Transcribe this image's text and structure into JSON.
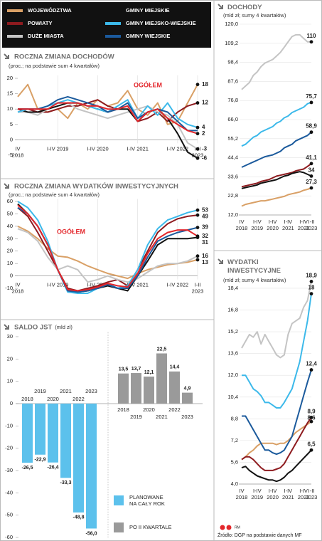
{
  "legend": {
    "items": [
      {
        "name": "WOJEWÓDZTWA",
        "color": "#d9a066"
      },
      {
        "name": "POWIATY",
        "color": "#8e1b1f"
      },
      {
        "name": "DUŻE MIASTA",
        "color": "#c4c4c4"
      },
      {
        "name": "GMINY MIEJSKIE",
        "color": "#111111"
      },
      {
        "name": "GMINY MIEJSKO-WIEJSKIE",
        "color": "#3cb9ea"
      },
      {
        "name": "GMINY WIEJSKIE",
        "color": "#1b5a9c"
      }
    ]
  },
  "footer": {
    "source": "Źródło: DGP na podstawie danych MF",
    "author": "RM"
  },
  "chart_data": [
    {
      "type": "line",
      "title": "ROCZNA ZMIANA DOCHODÓW",
      "subtitle": "(proc.; na podstawie sum 4 kwartałów)",
      "categories": [
        "IV 2018",
        null,
        null,
        null,
        "I-IV 2019",
        null,
        null,
        null,
        "I-IV 2020",
        null,
        null,
        null,
        "I-IV 2021",
        null,
        null,
        null,
        "I-IV 2022",
        null,
        "I-II 2023"
      ],
      "ylim": [
        -7,
        21
      ],
      "yticks": [
        -5,
        0,
        5,
        10,
        15,
        20
      ],
      "series": [
        {
          "values": [
            14,
            18,
            10,
            9,
            10,
            7,
            12,
            10,
            13,
            11,
            12,
            16,
            10,
            8,
            12,
            5,
            6,
            12,
            18
          ],
          "end_label": "18"
        },
        {
          "values": [
            10,
            10,
            9,
            9,
            10,
            11,
            11,
            12,
            13,
            11,
            10,
            11,
            6,
            7,
            9,
            6,
            9,
            11,
            12
          ],
          "end_label": "12"
        },
        {
          "values": [
            9,
            9,
            8,
            10,
            11,
            12,
            10,
            9,
            8,
            7,
            8,
            9,
            10,
            11,
            9,
            8,
            5,
            -1,
            -3
          ],
          "end_label": "-3"
        },
        {
          "values": [
            10,
            9,
            9,
            10,
            11,
            12,
            12,
            11,
            10,
            9,
            10,
            10,
            6,
            9,
            10,
            7,
            2,
            -4,
            -6
          ],
          "end_label": "-6"
        },
        {
          "values": [
            9,
            10,
            10,
            11,
            12,
            13,
            12,
            11,
            10,
            9,
            11,
            13,
            7,
            11,
            8,
            12,
            7,
            5,
            4
          ],
          "end_label": "4"
        },
        {
          "values": [
            10,
            10,
            10,
            11,
            13,
            14,
            13,
            12,
            11,
            9,
            10,
            12,
            7,
            9,
            10,
            9,
            6,
            3,
            3
          ]
        },
        {
          "name": "OGÓŁEM",
          "color": "#e3262b",
          "values": [
            10,
            10,
            10,
            10,
            12,
            12,
            12,
            11,
            11,
            10,
            10,
            11,
            6,
            9,
            10,
            7,
            5,
            3,
            2
          ],
          "end_label": "2"
        }
      ]
    },
    {
      "type": "line",
      "title": "ROCZNA ZMIANA WYDATKÓW INWESTYCYJNYCH",
      "subtitle": "(proc.; na podstawie sum 4 kwartałów)",
      "categories": [
        "IV 2018",
        null,
        null,
        null,
        "I-IV 2019",
        null,
        null,
        null,
        "I-IV 2020",
        null,
        null,
        null,
        "I-IV 2021",
        null,
        null,
        null,
        "I-IV 2022",
        null,
        "I-II 2023"
      ],
      "ylim": [
        -14,
        62
      ],
      "yticks": [
        -10,
        0,
        10,
        20,
        30,
        40,
        50,
        60
      ],
      "series": [
        {
          "values": [
            40,
            36,
            30,
            22,
            16,
            15,
            12,
            8,
            5,
            2,
            0,
            -2,
            2,
            5,
            7,
            9,
            10,
            11,
            13
          ],
          "end_label": "13"
        },
        {
          "values": [
            55,
            48,
            35,
            20,
            5,
            -10,
            -12,
            -10,
            -8,
            -5,
            -3,
            -8,
            5,
            20,
            35,
            42,
            46,
            48,
            49
          ],
          "end_label": "49"
        },
        {
          "values": [
            38,
            35,
            28,
            15,
            5,
            8,
            5,
            -5,
            -3,
            0,
            -3,
            -5,
            -2,
            3,
            8,
            10,
            10,
            12,
            16
          ],
          "end_label": "16"
        },
        {
          "values": [
            58,
            50,
            40,
            25,
            5,
            -12,
            -13,
            -12,
            -10,
            -8,
            -10,
            -12,
            0,
            12,
            25,
            30,
            30,
            30,
            31
          ],
          "end_label": "31"
        },
        {
          "values": [
            60,
            55,
            45,
            28,
            5,
            -13,
            -14,
            -14,
            -10,
            -6,
            -10,
            -8,
            5,
            25,
            38,
            45,
            48,
            51,
            53
          ],
          "end_label": "53"
        },
        {
          "values": [
            55,
            50,
            40,
            25,
            5,
            -12,
            -13,
            -12,
            -10,
            -7,
            -10,
            -10,
            0,
            15,
            28,
            32,
            35,
            37,
            39
          ],
          "end_label": "39"
        },
        {
          "name": "OGÓŁEM",
          "color": "#e3262b",
          "values": [
            57,
            50,
            40,
            25,
            5,
            -11,
            -12,
            -11,
            -9,
            -6,
            -8,
            -9,
            2,
            18,
            30,
            35,
            37,
            37,
            32
          ],
          "end_label": "32"
        }
      ]
    },
    {
      "type": "bar",
      "title": "SALDO JST",
      "subtitle": "(mld zł)",
      "categories": [
        "2018",
        "2019",
        "2020",
        "2021",
        "2022",
        "2023"
      ],
      "ylim": [
        -60,
        32
      ],
      "yticks": [
        -60,
        -50,
        -40,
        -30,
        -20,
        -10,
        0,
        10,
        20,
        30
      ],
      "series": [
        {
          "name": "PLANOWANE NA CAŁY ROK",
          "color": "#5cc1ec",
          "values": [
            -26.5,
            -22.9,
            -26.4,
            -33.3,
            -48.8,
            -56.0
          ],
          "value_labels": [
            "-26,5",
            "-22,9",
            "-26,4",
            "-33,3",
            "-48,8",
            "-56,0"
          ]
        },
        {
          "name": "PO II KWARTALE",
          "color": "#9a9a9a",
          "values": [
            13.5,
            13.7,
            12.1,
            22.5,
            14.4,
            4.9
          ],
          "value_labels": [
            "13,5",
            "13,7",
            "12,1",
            "22,5",
            "14,4",
            "4,9"
          ]
        }
      ]
    },
    {
      "type": "line",
      "title": "DOCHODY",
      "subtitle": "(mld zł; sumy 4 kwartałów)",
      "categories": [
        "IV 2018",
        null,
        null,
        null,
        "I-IV 2019",
        null,
        null,
        null,
        "I-IV 2020",
        null,
        null,
        null,
        "I-IV 2021",
        null,
        null,
        null,
        "I-IV 2022",
        null,
        "I-II 2023"
      ],
      "ylim": [
        12,
        120
      ],
      "grid": true,
      "yticks": [
        {
          "value": 12.0,
          "label": "12,0"
        },
        {
          "value": 22.8,
          "label": "22,8"
        },
        {
          "value": 33.6,
          "label": "33,6"
        },
        {
          "value": 44.4,
          "label": "44,4"
        },
        {
          "value": 55.2,
          "label": "55,2"
        },
        {
          "value": 66.0,
          "label": "66,0"
        },
        {
          "value": 76.8,
          "label": "76,8"
        },
        {
          "value": 87.6,
          "label": "87,6"
        },
        {
          "value": 98.4,
          "label": "98,4"
        },
        {
          "value": 109.2,
          "label": "109,2"
        },
        {
          "value": 120.0,
          "label": "120,0"
        }
      ],
      "series": [
        {
          "values": [
            17,
            18,
            18.5,
            19,
            19.5,
            20,
            20,
            20.5,
            21,
            21.5,
            22,
            22.5,
            23.5,
            24,
            24.5,
            25,
            26,
            26.5,
            27.3
          ],
          "end_label": "27,3"
        },
        {
          "values": [
            28,
            28.5,
            29,
            29.5,
            30,
            31,
            31.5,
            32,
            33,
            34,
            34.5,
            35,
            35.5,
            36,
            37,
            37.5,
            38,
            39.5,
            41.1
          ],
          "end_label": "41,1"
        },
        {
          "values": [
            83,
            85,
            87,
            91,
            93,
            96,
            98,
            99,
            100,
            102,
            104,
            107,
            110,
            113,
            114,
            114,
            112,
            110,
            110
          ],
          "end_label": "110"
        },
        {
          "values": [
            27,
            27.5,
            28,
            28.5,
            29,
            30,
            30.5,
            31,
            31.5,
            32,
            33,
            34,
            34.5,
            35.5,
            36,
            36.5,
            36,
            35,
            34
          ],
          "end_label": "34"
        },
        {
          "values": [
            51,
            52,
            54,
            56,
            57,
            59,
            60,
            61,
            62,
            64,
            65,
            67,
            68,
            70,
            71,
            72,
            73,
            75,
            75.7
          ],
          "end_label": "75,7"
        },
        {
          "values": [
            39,
            40,
            41,
            42,
            43,
            44,
            45,
            45.5,
            46,
            47,
            48,
            50,
            51,
            52,
            54,
            55,
            56,
            57,
            58.9
          ],
          "end_label": "58,9"
        }
      ]
    },
    {
      "type": "line",
      "title": "WYDATKI INWESTYCYJNE",
      "subtitle": "(mld zł; sumy 4 kwartałów)",
      "categories": [
        "IV 2018",
        null,
        null,
        null,
        "I-IV 2019",
        null,
        null,
        null,
        "I-IV 2020",
        null,
        null,
        null,
        "I-IV 2021",
        null,
        null,
        null,
        "I-IV 2022",
        null,
        "I-II 2023"
      ],
      "ylim": [
        4,
        19.2
      ],
      "grid": true,
      "yticks": [
        {
          "value": 4.0,
          "label": "4,0"
        },
        {
          "value": 5.6,
          "label": "5,6"
        },
        {
          "value": 7.2,
          "label": "7,2"
        },
        {
          "value": 8.8,
          "label": "8,8"
        },
        {
          "value": 10.4,
          "label": "10,4"
        },
        {
          "value": 12.0,
          "label": "12,0"
        },
        {
          "value": 13.6,
          "label": "13,6"
        },
        {
          "value": 15.2,
          "label": "15,2"
        },
        {
          "value": 16.8,
          "label": "16,8"
        },
        {
          "value": 18.4,
          "label": "18,4"
        }
      ],
      "series": [
        {
          "values": [
            5.8,
            6,
            6.3,
            6.5,
            6.8,
            7,
            7,
            7,
            7,
            6.9,
            7,
            7,
            7.2,
            7.5,
            7.8,
            8,
            8.2,
            8.4,
            8.6
          ],
          "end_label": "8,6"
        },
        {
          "values": [
            5.8,
            6,
            6,
            5.8,
            5.5,
            5.2,
            5,
            5,
            5,
            5.1,
            5.2,
            5.5,
            6,
            6.5,
            7,
            7.5,
            8,
            8.5,
            8.9
          ],
          "end_label": "8,9"
        },
        {
          "values": [
            14,
            14.5,
            15,
            14.8,
            15.2,
            14.3,
            15,
            14.5,
            14,
            13.5,
            13.3,
            13.5,
            15,
            15.8,
            16,
            16.2,
            17,
            17.5,
            18.9
          ],
          "end_label": "18,9"
        },
        {
          "values": [
            5.2,
            5.3,
            5.0,
            4.8,
            4.6,
            4.5,
            4.4,
            4.3,
            4.3,
            4.2,
            4.3,
            4.5,
            4.8,
            5,
            5.3,
            5.6,
            5.9,
            6.2,
            6.5
          ],
          "end_label": "6,5"
        },
        {
          "values": [
            12,
            12,
            11.5,
            11,
            10.8,
            10.5,
            10,
            10,
            9.8,
            9.6,
            9.6,
            10,
            10.5,
            11,
            12,
            13,
            14.5,
            16,
            18
          ],
          "end_label": "18"
        },
        {
          "values": [
            9,
            9,
            8.5,
            8,
            7.5,
            7,
            6.5,
            6.5,
            6.3,
            6.2,
            6.3,
            6.5,
            7,
            7.5,
            8.5,
            9.5,
            10.5,
            11.5,
            12.4
          ],
          "end_label": "12,4"
        }
      ]
    }
  ]
}
